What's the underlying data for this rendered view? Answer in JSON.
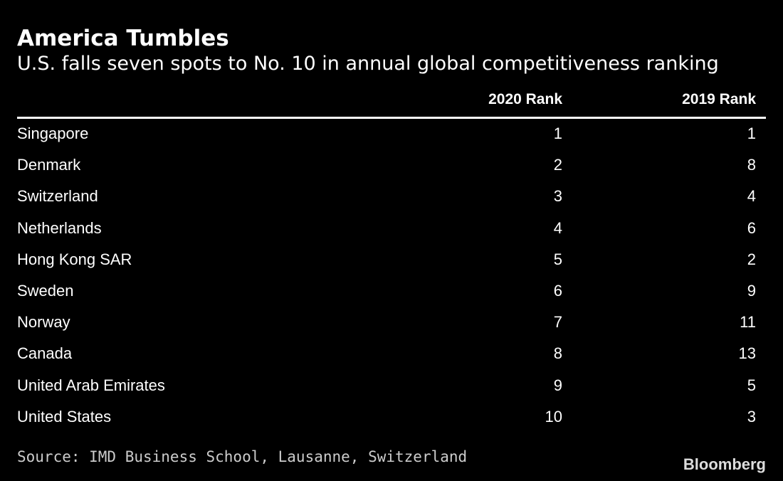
{
  "header": {
    "title": "America Tumbles",
    "subtitle": "U.S. falls seven spots to No. 10 in annual global competitiveness ranking"
  },
  "table": {
    "columns": [
      "2020 Rank",
      "2019 Rank"
    ],
    "rows": [
      [
        "Singapore",
        1,
        1
      ],
      [
        "Denmark",
        2,
        8
      ],
      [
        "Switzerland",
        3,
        4
      ],
      [
        "Netherlands",
        4,
        6
      ],
      [
        "Hong Kong SAR",
        5,
        2
      ],
      [
        "Sweden",
        6,
        9
      ],
      [
        "Norway",
        7,
        11
      ],
      [
        "Canada",
        8,
        13
      ],
      [
        "United Arab Emirates",
        9,
        5
      ],
      [
        "United States",
        10,
        3
      ]
    ]
  },
  "footer": {
    "source": "Source: IMD Business School, Lausanne, Switzerland",
    "brand": "Bloomberg"
  }
}
